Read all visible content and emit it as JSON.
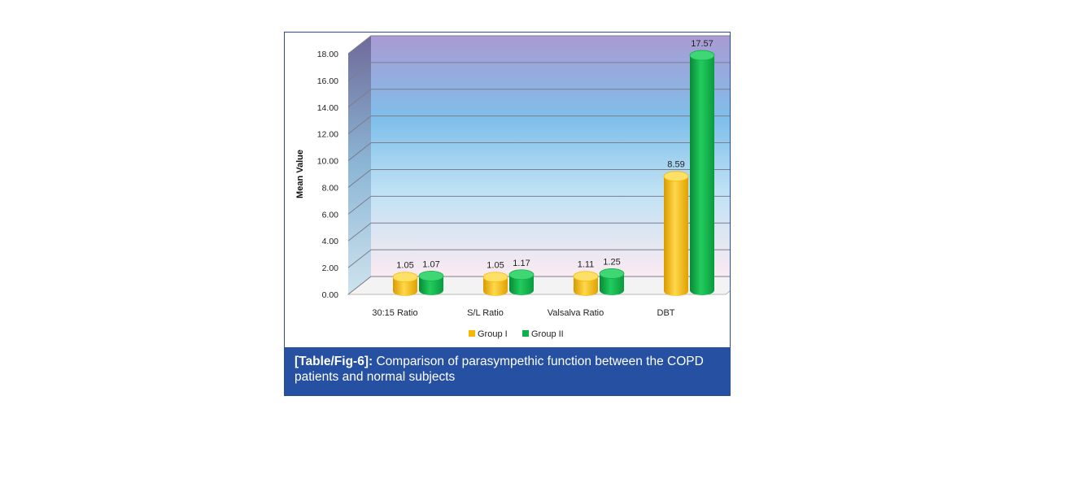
{
  "caption": {
    "prefix": "[Table/Fig-6]:",
    "text": "Comparison of parasympethic function between the COPD patients and normal subjects"
  },
  "colors": {
    "group1": "#f5b800",
    "group2": "#0fb04a",
    "caption_bg": "#2650a1"
  },
  "chart_data": {
    "type": "bar",
    "title": "",
    "xlabel": "",
    "ylabel": "Mean Value",
    "ylim": [
      0,
      18
    ],
    "yticks": [
      "0.00",
      "2.00",
      "4.00",
      "6.00",
      "8.00",
      "10.00",
      "12.00",
      "14.00",
      "16.00",
      "18.00"
    ],
    "grid": true,
    "legend": "bottom",
    "categories": [
      "30:15 Ratio",
      "S/L Ratio",
      "Valsalva Ratio",
      "DBT"
    ],
    "series": [
      {
        "name": "Group I",
        "values": [
          1.05,
          1.05,
          1.11,
          8.59
        ],
        "labels": [
          "1.05",
          "1.05",
          "1.11",
          "8.59"
        ]
      },
      {
        "name": "Group II",
        "values": [
          1.07,
          1.17,
          1.25,
          17.57
        ],
        "labels": [
          "1.07",
          "1.17",
          "1.25",
          "17.57"
        ]
      }
    ]
  }
}
